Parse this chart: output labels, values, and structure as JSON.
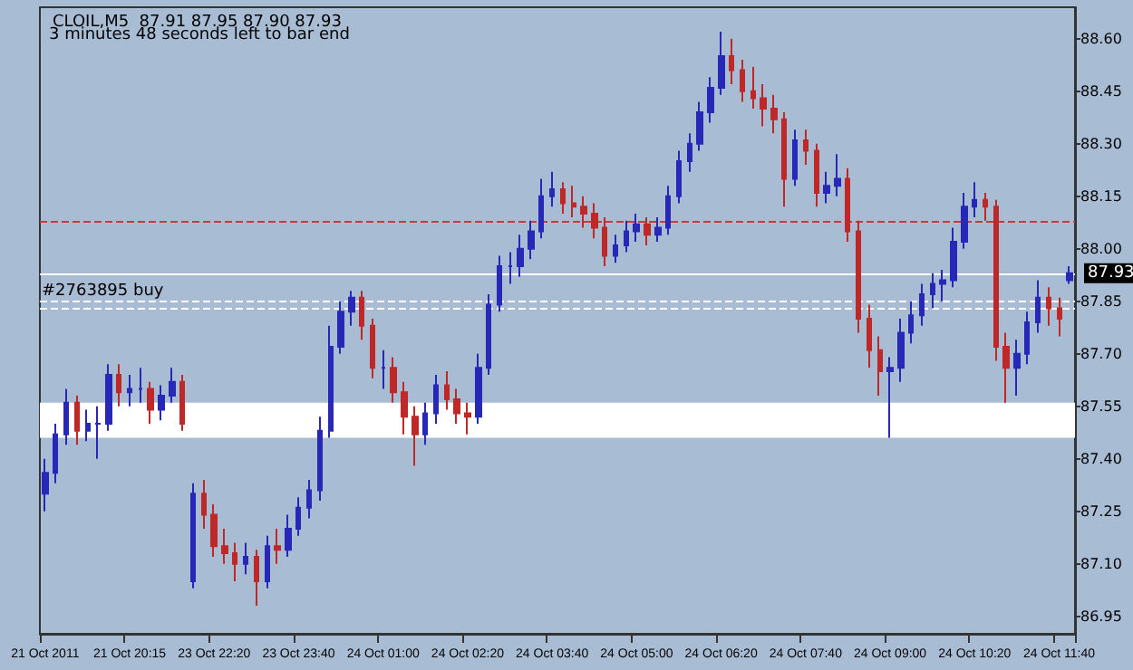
{
  "chart_data": {
    "type": "candlestick",
    "title": "CLOIL,M5  87.91 87.95 87.90 87.93",
    "annotations": [
      "3 minutes 48 seconds left to bar end"
    ],
    "categories": [
      "21 Oct 2011",
      null,
      null,
      null,
      null,
      null,
      null,
      null,
      "21 Oct 20:15",
      null,
      null,
      null,
      null,
      null,
      null,
      null,
      "23 Oct 22:20",
      null,
      null,
      null,
      null,
      null,
      null,
      null,
      "23 Oct 23:40",
      null,
      null,
      null,
      null,
      null,
      null,
      null,
      "24 Oct 01:00",
      null,
      null,
      null,
      null,
      null,
      null,
      null,
      "24 Oct 02:20",
      null,
      null,
      null,
      null,
      null,
      null,
      null,
      "24 Oct 03:40",
      null,
      null,
      null,
      null,
      null,
      null,
      null,
      "24 Oct 05:00",
      null,
      null,
      null,
      null,
      null,
      null,
      null,
      "24 Oct 06:20",
      null,
      null,
      null,
      null,
      null,
      null,
      null,
      "24 Oct 07:40",
      null,
      null,
      null,
      null,
      null,
      null,
      null,
      "24 Oct 09:00",
      null,
      null,
      null,
      null,
      null,
      null,
      null,
      "24 Oct 10:20",
      null,
      null,
      null,
      null,
      null,
      null,
      null,
      "24 Oct 11:40",
      null
    ],
    "ohlc": [
      [
        87.3,
        87.4,
        87.25,
        87.36
      ],
      [
        87.36,
        87.5,
        87.33,
        87.47
      ],
      [
        87.47,
        87.6,
        87.44,
        87.56
      ],
      [
        87.56,
        87.58,
        87.44,
        87.48
      ],
      [
        87.48,
        87.54,
        87.45,
        87.5
      ],
      [
        87.5,
        87.55,
        87.4,
        87.5
      ],
      [
        87.5,
        87.67,
        87.48,
        87.64
      ],
      [
        87.64,
        87.67,
        87.55,
        87.59
      ],
      [
        87.59,
        87.64,
        87.55,
        87.6
      ],
      [
        87.6,
        87.66,
        87.56,
        87.6
      ],
      [
        87.6,
        87.62,
        87.5,
        87.54
      ],
      [
        87.54,
        87.61,
        87.51,
        87.58
      ],
      [
        87.58,
        87.66,
        87.56,
        87.62
      ],
      [
        87.62,
        87.64,
        87.48,
        87.5
      ],
      [
        87.05,
        87.33,
        87.03,
        87.3
      ],
      [
        87.3,
        87.34,
        87.2,
        87.24
      ],
      [
        87.24,
        87.27,
        87.12,
        87.15
      ],
      [
        87.15,
        87.2,
        87.1,
        87.13
      ],
      [
        87.13,
        87.16,
        87.05,
        87.1
      ],
      [
        87.1,
        87.16,
        87.07,
        87.12
      ],
      [
        87.12,
        87.14,
        86.98,
        87.05
      ],
      [
        87.05,
        87.18,
        87.03,
        87.15
      ],
      [
        87.15,
        87.2,
        87.1,
        87.14
      ],
      [
        87.14,
        87.24,
        87.12,
        87.2
      ],
      [
        87.2,
        87.29,
        87.18,
        87.26
      ],
      [
        87.26,
        87.34,
        87.23,
        87.31
      ],
      [
        87.31,
        87.52,
        87.28,
        87.48
      ],
      [
        87.48,
        87.78,
        87.46,
        87.72
      ],
      [
        87.72,
        87.85,
        87.7,
        87.82
      ],
      [
        87.82,
        87.88,
        87.78,
        87.86
      ],
      [
        87.86,
        87.88,
        87.74,
        87.78
      ],
      [
        87.78,
        87.8,
        87.63,
        87.66
      ],
      [
        87.66,
        87.71,
        87.6,
        87.66
      ],
      [
        87.66,
        87.69,
        87.56,
        87.59
      ],
      [
        87.59,
        87.62,
        87.47,
        87.52
      ],
      [
        87.52,
        87.55,
        87.38,
        87.47
      ],
      [
        87.47,
        87.56,
        87.44,
        87.53
      ],
      [
        87.53,
        87.64,
        87.5,
        87.61
      ],
      [
        87.61,
        87.65,
        87.54,
        87.57
      ],
      [
        87.57,
        87.6,
        87.5,
        87.53
      ],
      [
        87.53,
        87.56,
        87.47,
        87.52
      ],
      [
        87.52,
        87.7,
        87.5,
        87.66
      ],
      [
        87.66,
        87.87,
        87.64,
        87.84
      ],
      [
        87.84,
        87.98,
        87.82,
        87.95
      ],
      [
        87.95,
        87.99,
        87.9,
        87.95
      ],
      [
        87.95,
        88.04,
        87.92,
        88.0
      ],
      [
        88.0,
        88.08,
        87.97,
        88.05
      ],
      [
        88.05,
        88.2,
        88.03,
        88.15
      ],
      [
        88.15,
        88.22,
        88.12,
        88.17
      ],
      [
        88.17,
        88.19,
        88.1,
        88.13
      ],
      [
        88.13,
        88.18,
        88.09,
        88.12
      ],
      [
        88.12,
        88.15,
        88.06,
        88.1
      ],
      [
        88.1,
        88.13,
        88.03,
        88.06
      ],
      [
        88.06,
        88.09,
        87.95,
        87.98
      ],
      [
        87.98,
        88.04,
        87.96,
        88.01
      ],
      [
        88.01,
        88.08,
        87.99,
        88.05
      ],
      [
        88.05,
        88.1,
        88.02,
        88.07
      ],
      [
        88.07,
        88.09,
        88.01,
        88.04
      ],
      [
        88.04,
        88.09,
        88.02,
        88.06
      ],
      [
        88.06,
        88.18,
        88.04,
        88.15
      ],
      [
        88.15,
        88.28,
        88.13,
        88.25
      ],
      [
        88.25,
        88.33,
        88.22,
        88.3
      ],
      [
        88.3,
        88.42,
        88.28,
        88.39
      ],
      [
        88.39,
        88.49,
        88.36,
        88.46
      ],
      [
        88.46,
        88.62,
        88.44,
        88.55
      ],
      [
        88.55,
        88.6,
        88.47,
        88.51
      ],
      [
        88.51,
        88.54,
        88.42,
        88.45
      ],
      [
        88.45,
        88.52,
        88.4,
        88.43
      ],
      [
        88.43,
        88.47,
        88.35,
        88.4
      ],
      [
        88.4,
        88.44,
        88.33,
        88.37
      ],
      [
        88.37,
        88.39,
        88.12,
        88.2
      ],
      [
        88.2,
        88.34,
        88.18,
        88.31
      ],
      [
        88.31,
        88.34,
        88.24,
        88.28
      ],
      [
        88.28,
        88.3,
        88.12,
        88.16
      ],
      [
        88.16,
        88.22,
        88.13,
        88.18
      ],
      [
        88.18,
        88.27,
        88.15,
        88.2
      ],
      [
        88.2,
        88.23,
        88.02,
        88.05
      ],
      [
        88.05,
        88.08,
        87.76,
        87.8
      ],
      [
        87.8,
        87.84,
        87.66,
        87.71
      ],
      [
        87.71,
        87.75,
        87.58,
        87.65
      ],
      [
        87.65,
        87.69,
        87.46,
        87.66
      ],
      [
        87.66,
        87.8,
        87.62,
        87.76
      ],
      [
        87.76,
        87.85,
        87.73,
        87.81
      ],
      [
        87.81,
        87.9,
        87.78,
        87.87
      ],
      [
        87.87,
        87.93,
        87.83,
        87.9
      ],
      [
        87.9,
        87.94,
        87.85,
        87.91
      ],
      [
        87.91,
        88.06,
        87.89,
        88.02
      ],
      [
        88.02,
        88.16,
        88.0,
        88.12
      ],
      [
        88.12,
        88.19,
        88.09,
        88.14
      ],
      [
        88.14,
        88.16,
        88.08,
        88.12
      ],
      [
        88.12,
        88.14,
        87.68,
        87.72
      ],
      [
        87.72,
        87.76,
        87.56,
        87.66
      ],
      [
        87.66,
        87.74,
        87.58,
        87.7
      ],
      [
        87.7,
        87.82,
        87.67,
        87.79
      ],
      [
        87.79,
        87.91,
        87.76,
        87.86
      ],
      [
        87.86,
        87.89,
        87.78,
        87.83
      ],
      [
        87.83,
        87.86,
        87.75,
        87.8
      ],
      [
        87.91,
        87.95,
        87.9,
        87.93
      ]
    ],
    "colors": [
      "#2828b8",
      "#2828b8",
      "#2828b8",
      "#c02828",
      "#2828b8",
      "#2828b8",
      "#2828b8",
      "#c02828",
      "#2828b8",
      "#2828b8",
      "#c02828",
      "#2828b8",
      "#2828b8",
      "#c02828",
      "#2828b8",
      "#c02828",
      "#c02828",
      "#c02828",
      "#c02828",
      "#2828b8",
      "#c02828",
      "#2828b8",
      "#c02828",
      "#2828b8",
      "#2828b8",
      "#2828b8",
      "#2828b8",
      "#2828b8",
      "#2828b8",
      "#2828b8",
      "#c02828",
      "#c02828",
      "#2828b8",
      "#c02828",
      "#c02828",
      "#c02828",
      "#2828b8",
      "#2828b8",
      "#c02828",
      "#c02828",
      "#c02828",
      "#2828b8",
      "#2828b8",
      "#2828b8",
      "#2828b8",
      "#2828b8",
      "#2828b8",
      "#2828b8",
      "#2828b8",
      "#c02828",
      "#c02828",
      "#c02828",
      "#c02828",
      "#c02828",
      "#2828b8",
      "#2828b8",
      "#2828b8",
      "#c02828",
      "#2828b8",
      "#2828b8",
      "#2828b8",
      "#2828b8",
      "#2828b8",
      "#2828b8",
      "#2828b8",
      "#c02828",
      "#c02828",
      "#c02828",
      "#c02828",
      "#c02828",
      "#c02828",
      "#2828b8",
      "#c02828",
      "#c02828",
      "#2828b8",
      "#2828b8",
      "#c02828",
      "#c02828",
      "#c02828",
      "#c02828",
      "#2828b8",
      "#2828b8",
      "#2828b8",
      "#2828b8",
      "#2828b8",
      "#2828b8",
      "#2828b8",
      "#2828b8",
      "#2828b8",
      "#c02828",
      "#c02828",
      "#c02828",
      "#2828b8",
      "#2828b8",
      "#2828b8",
      "#c02828",
      "#c02828",
      "#2828b8"
    ],
    "ylim": [
      86.9,
      88.69
    ],
    "yticks": [
      {
        "value": 86.95,
        "label": "86.95"
      },
      {
        "value": 87.1,
        "label": "87.10"
      },
      {
        "value": 87.25,
        "label": "87.25"
      },
      {
        "value": 87.4,
        "label": "87.40"
      },
      {
        "value": 87.55,
        "label": "87.55"
      },
      {
        "value": 87.7,
        "label": "87.70"
      },
      {
        "value": 87.85,
        "label": "87.85"
      },
      {
        "value": 88.0,
        "label": "88.00"
      },
      {
        "value": 88.15,
        "label": "88.15"
      },
      {
        "value": 88.3,
        "label": "88.30"
      },
      {
        "value": 88.45,
        "label": "88.45"
      },
      {
        "value": 88.6,
        "label": "88.60"
      }
    ],
    "ref_lines": [
      {
        "axis": "y",
        "value": 88.08,
        "label": null,
        "color": "#c04040",
        "line_style": "dashed"
      },
      {
        "axis": "y",
        "value": 87.93,
        "label": "87.93",
        "color": "#ffffff",
        "line_style": "solid"
      },
      {
        "axis": "y",
        "value": 87.85,
        "label": "#2763895 buy",
        "color": "#ffffff",
        "line_style": "dashed"
      },
      {
        "axis": "y",
        "value": 87.83,
        "label": null,
        "color": "#ffffff",
        "line_style": "dashed"
      }
    ],
    "bands": [
      {
        "axis": "y",
        "from": 87.46,
        "to": 87.56,
        "label": null,
        "color": "#ffffff"
      }
    ],
    "grid": false
  }
}
